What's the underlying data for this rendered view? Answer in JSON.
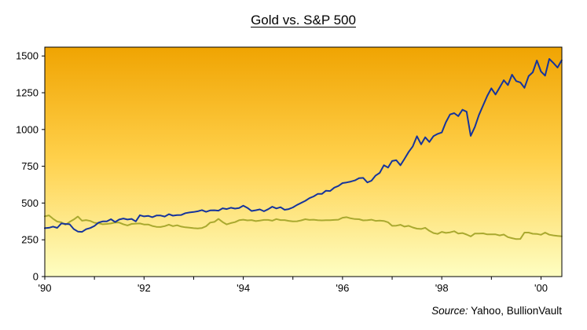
{
  "page": {
    "title": "Gold vs. S&P 500",
    "source_label": "Source:",
    "source_text": " Yahoo, BullionVault"
  },
  "chart_data": {
    "type": "line",
    "title": "Gold vs. S&P 500",
    "xlabel": "",
    "ylabel": "",
    "grid": false,
    "legend": "none",
    "source": "Source: Yahoo, BullionVault",
    "xlim": [
      1990,
      2000.42
    ],
    "ylim": [
      0,
      1560
    ],
    "yticks": [
      0,
      250,
      500,
      750,
      1000,
      1250,
      1500
    ],
    "xticks": [
      1990,
      1992,
      1994,
      1996,
      1998,
      2000
    ],
    "xtick_labels": [
      "'90",
      "'92",
      "'94",
      "'96",
      "'98",
      "'00"
    ],
    "background_gradient": [
      "#F0A402",
      "#FFD04A",
      "#FEFEC2"
    ],
    "x_start": 1990,
    "x_step": 0.0833333,
    "series": [
      {
        "name": "Gold",
        "color": "#a9a92f",
        "values": [
          410,
          416,
          393,
          374,
          369,
          352,
          372,
          388,
          408,
          380,
          384,
          378,
          366,
          363,
          356,
          358,
          361,
          368,
          367,
          356,
          348,
          358,
          360,
          361,
          354,
          354,
          344,
          338,
          337,
          343,
          353,
          343,
          349,
          340,
          335,
          333,
          329,
          327,
          330,
          342,
          367,
          372,
          392,
          371,
          355,
          364,
          370,
          383,
          387,
          382,
          384,
          377,
          381,
          385,
          385,
          380,
          391,
          384,
          384,
          379,
          375,
          376,
          382,
          390,
          385,
          387,
          383,
          382,
          383,
          383,
          385,
          387,
          400,
          404,
          396,
          391,
          390,
          382,
          383,
          387,
          379,
          381,
          378,
          369,
          345,
          346,
          352,
          340,
          345,
          334,
          326,
          324,
          332,
          311,
          296,
          290,
          304,
          297,
          301,
          308,
          293,
          296,
          286,
          273,
          293,
          292,
          294,
          287,
          287,
          287,
          280,
          286,
          268,
          261,
          255,
          256,
          299,
          299,
          291,
          290,
          284,
          299,
          285,
          280,
          276,
          274
        ]
      },
      {
        "name": "S&P 500",
        "color": "#16349c",
        "values": [
          329,
          332,
          340,
          331,
          361,
          358,
          356,
          323,
          306,
          304,
          322,
          330,
          344,
          367,
          375,
          375,
          390,
          371,
          388,
          395,
          388,
          392,
          375,
          417,
          409,
          413,
          404,
          415,
          415,
          408,
          424,
          414,
          418,
          419,
          431,
          436,
          439,
          444,
          452,
          440,
          450,
          451,
          448,
          464,
          459,
          468,
          462,
          466,
          482,
          467,
          446,
          451,
          457,
          444,
          458,
          475,
          463,
          472,
          454,
          459,
          470,
          487,
          501,
          515,
          533,
          545,
          562,
          562,
          584,
          582,
          605,
          616,
          636,
          640,
          646,
          654,
          669,
          671,
          640,
          652,
          687,
          705,
          757,
          741,
          786,
          791,
          757,
          801,
          848,
          885,
          954,
          899,
          947,
          915,
          955,
          970,
          980,
          1049,
          1102,
          1111,
          1091,
          1134,
          1121,
          957,
          1017,
          1099,
          1164,
          1229,
          1280,
          1238,
          1286,
          1335,
          1302,
          1373,
          1329,
          1320,
          1283,
          1363,
          1389,
          1469,
          1394,
          1366,
          1480,
          1452,
          1421,
          1471
        ]
      }
    ]
  }
}
